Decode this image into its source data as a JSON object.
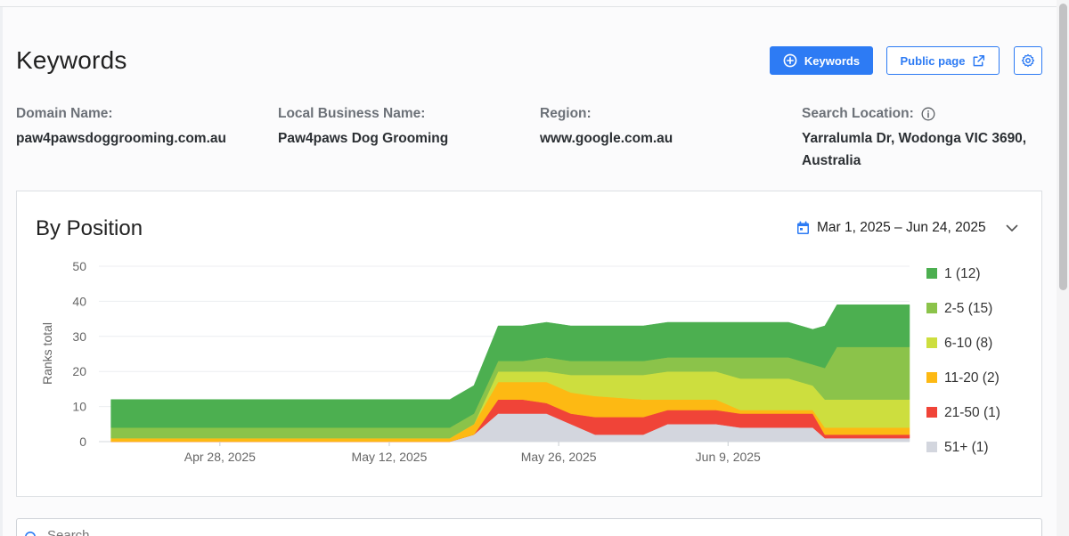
{
  "page": {
    "title": "Keywords"
  },
  "toolbar": {
    "keywords_label": "Keywords",
    "public_page_label": "Public page"
  },
  "info": [
    {
      "label": "Domain Name:",
      "value": "paw4pawsdoggrooming.com.au"
    },
    {
      "label": "Local Business Name:",
      "value": "Paw4paws Dog Grooming"
    },
    {
      "label": "Region:",
      "value": "www.google.com.au"
    },
    {
      "label": "Search Location:",
      "value": "Yarralumla Dr, Wodonga VIC 3690, Australia"
    }
  ],
  "card": {
    "title": "By Position",
    "date_range": "Mar 1, 2025 – Jun 24, 2025"
  },
  "search": {
    "placeholder": "Search"
  },
  "colors": {
    "accent": "#2d7bf4"
  },
  "icons": [
    "plus-circle-icon",
    "external-link-icon",
    "gear-icon",
    "info-icon",
    "calendar-icon",
    "chevron-down-icon",
    "search-icon"
  ],
  "chart_data": {
    "type": "area",
    "stacked": true,
    "ylabel": "Ranks total",
    "ylim": [
      0,
      50
    ],
    "yticks": [
      0,
      10,
      20,
      30,
      40,
      50
    ],
    "xlim": [
      "2025-04-18",
      "2025-06-24"
    ],
    "xticks": [
      {
        "date": "2025-04-28",
        "label": "Apr 28, 2025"
      },
      {
        "date": "2025-05-12",
        "label": "May 12, 2025"
      },
      {
        "date": "2025-05-26",
        "label": "May 26, 2025"
      },
      {
        "date": "2025-06-09",
        "label": "Jun 9, 2025"
      }
    ],
    "grid": true,
    "legend_position": "right",
    "x": [
      "2025-04-19",
      "2025-05-17",
      "2025-05-19",
      "2025-05-21",
      "2025-05-23",
      "2025-05-25",
      "2025-05-27",
      "2025-05-29",
      "2025-06-02",
      "2025-06-04",
      "2025-06-08",
      "2025-06-10",
      "2025-06-14",
      "2025-06-16",
      "2025-06-17",
      "2025-06-18",
      "2025-06-19",
      "2025-06-24"
    ],
    "series": [
      {
        "name": "51+ (1)",
        "color": "#d3d6de",
        "values": [
          0,
          0,
          2,
          8,
          8,
          8,
          5,
          2,
          2,
          5,
          5,
          4,
          4,
          4,
          1,
          1,
          1,
          1
        ]
      },
      {
        "name": "21-50 (1)",
        "color": "#f04438",
        "values": [
          0,
          0,
          0,
          4,
          4,
          3,
          3,
          5,
          5,
          4,
          4,
          4,
          4,
          4,
          1,
          1,
          1,
          1
        ]
      },
      {
        "name": "11-20 (2)",
        "color": "#fdb913",
        "values": [
          1,
          1,
          3,
          5,
          5,
          6,
          6,
          6,
          5,
          3,
          3,
          1,
          1,
          1,
          2,
          2,
          2,
          2
        ]
      },
      {
        "name": "6-10 (8)",
        "color": "#cdde3e",
        "values": [
          0,
          0,
          0,
          3,
          3,
          3,
          5,
          6,
          7,
          8,
          8,
          9,
          9,
          7,
          8,
          8,
          8,
          8
        ]
      },
      {
        "name": "2-5 (15)",
        "color": "#8bc34a",
        "values": [
          3,
          3,
          3,
          3,
          3,
          4,
          4,
          4,
          4,
          4,
          4,
          6,
          6,
          6,
          9,
          15,
          15,
          15
        ]
      },
      {
        "name": "1 (12)",
        "color": "#4caf50",
        "values": [
          8,
          8,
          8,
          10,
          10,
          10,
          10,
          10,
          10,
          10,
          10,
          10,
          10,
          10,
          12,
          12,
          12,
          12
        ]
      }
    ]
  }
}
